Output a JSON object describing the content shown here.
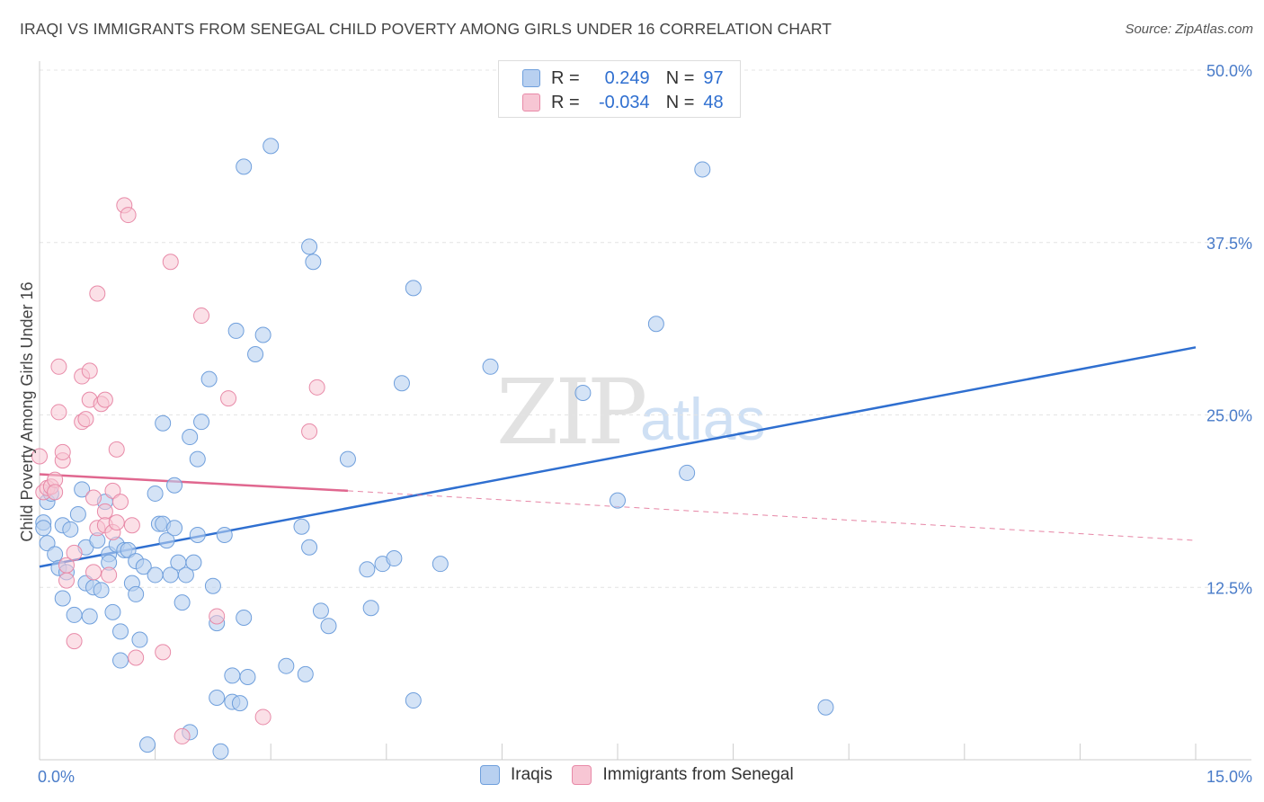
{
  "title": "IRAQI VS IMMIGRANTS FROM SENEGAL CHILD POVERTY AMONG GIRLS UNDER 16 CORRELATION CHART",
  "source": "Source: ZipAtlas.com",
  "watermark": {
    "zip": "ZIP",
    "atlas": "atlas"
  },
  "legend": {
    "r_label": "R =",
    "n_label": "N =",
    "rows": [
      {
        "r": "0.249",
        "n": "97"
      },
      {
        "r": "-0.034",
        "n": "48"
      }
    ]
  },
  "colors": {
    "iraqis_fill": "#b8d0f0",
    "iraqis_stroke": "#6f9fdc",
    "iraqis_line": "#2f6fd0",
    "senegal_fill": "#f7c6d4",
    "senegal_stroke": "#e88aa8",
    "senegal_line": "#e0678f"
  },
  "chart_data": {
    "type": "scatter",
    "xlabel": "",
    "ylabel": "Child Poverty Among Girls Under 16",
    "xlim": [
      0,
      15
    ],
    "ylim": [
      0,
      50
    ],
    "x_ticks": [
      {
        "value": 0,
        "label": "0.0%"
      },
      {
        "value": 15,
        "label": "15.0%"
      }
    ],
    "y_ticks": [
      {
        "value": 12.5,
        "label": "12.5%"
      },
      {
        "value": 25,
        "label": "25.0%"
      },
      {
        "value": 37.5,
        "label": "37.5%"
      },
      {
        "value": 50,
        "label": "50.0%"
      }
    ],
    "grid": true,
    "legend_position": "top-center",
    "series": [
      {
        "name": "Iraqis",
        "points": [
          [
            0.05,
            17.2
          ],
          [
            0.05,
            16.8
          ],
          [
            0.1,
            15.7
          ],
          [
            0.1,
            18.7
          ],
          [
            0.15,
            19.3
          ],
          [
            0.2,
            14.9
          ],
          [
            0.25,
            13.9
          ],
          [
            0.3,
            11.7
          ],
          [
            0.3,
            17.0
          ],
          [
            0.35,
            13.6
          ],
          [
            0.4,
            16.7
          ],
          [
            0.45,
            10.5
          ],
          [
            0.5,
            17.8
          ],
          [
            0.55,
            19.6
          ],
          [
            0.6,
            12.8
          ],
          [
            0.6,
            15.4
          ],
          [
            0.65,
            10.4
          ],
          [
            0.7,
            12.5
          ],
          [
            0.75,
            15.9
          ],
          [
            0.8,
            12.3
          ],
          [
            0.85,
            18.7
          ],
          [
            0.9,
            14.9
          ],
          [
            0.9,
            14.3
          ],
          [
            0.95,
            10.7
          ],
          [
            1.0,
            15.6
          ],
          [
            1.05,
            7.2
          ],
          [
            1.05,
            9.3
          ],
          [
            1.1,
            15.2
          ],
          [
            1.15,
            15.2
          ],
          [
            1.2,
            12.8
          ],
          [
            1.25,
            12.0
          ],
          [
            1.25,
            14.4
          ],
          [
            1.3,
            8.7
          ],
          [
            1.35,
            14.0
          ],
          [
            1.4,
            1.1
          ],
          [
            1.5,
            13.4
          ],
          [
            1.5,
            19.3
          ],
          [
            1.55,
            17.1
          ],
          [
            1.6,
            17.1
          ],
          [
            1.6,
            24.4
          ],
          [
            1.65,
            15.9
          ],
          [
            1.7,
            13.4
          ],
          [
            1.75,
            19.9
          ],
          [
            1.75,
            16.8
          ],
          [
            1.8,
            14.3
          ],
          [
            1.85,
            11.4
          ],
          [
            1.9,
            13.4
          ],
          [
            1.95,
            2.0
          ],
          [
            1.95,
            23.4
          ],
          [
            2.0,
            14.3
          ],
          [
            2.05,
            16.3
          ],
          [
            2.05,
            21.8
          ],
          [
            2.1,
            24.5
          ],
          [
            2.2,
            27.6
          ],
          [
            2.25,
            12.6
          ],
          [
            2.3,
            4.5
          ],
          [
            2.3,
            9.9
          ],
          [
            2.35,
            0.6
          ],
          [
            2.4,
            16.3
          ],
          [
            2.5,
            6.1
          ],
          [
            2.5,
            4.2
          ],
          [
            2.55,
            31.1
          ],
          [
            2.6,
            4.1
          ],
          [
            2.65,
            43.0
          ],
          [
            2.65,
            10.3
          ],
          [
            2.7,
            6.0
          ],
          [
            2.8,
            29.4
          ],
          [
            2.9,
            30.8
          ],
          [
            3.0,
            44.5
          ],
          [
            3.2,
            6.8
          ],
          [
            3.4,
            16.9
          ],
          [
            3.45,
            6.2
          ],
          [
            3.5,
            15.4
          ],
          [
            3.5,
            37.2
          ],
          [
            3.55,
            36.1
          ],
          [
            3.65,
            10.8
          ],
          [
            3.75,
            9.7
          ],
          [
            4.0,
            21.8
          ],
          [
            4.25,
            13.8
          ],
          [
            4.3,
            11.0
          ],
          [
            4.45,
            14.2
          ],
          [
            4.6,
            14.6
          ],
          [
            4.7,
            27.3
          ],
          [
            4.85,
            4.3
          ],
          [
            4.85,
            34.2
          ],
          [
            5.2,
            14.2
          ],
          [
            5.85,
            28.5
          ],
          [
            7.05,
            26.6
          ],
          [
            7.5,
            18.8
          ],
          [
            8.0,
            31.6
          ],
          [
            8.4,
            20.8
          ],
          [
            8.6,
            42.8
          ],
          [
            10.2,
            3.8
          ]
        ],
        "trend": {
          "x": [
            0,
            15
          ],
          "y": [
            14.0,
            29.9
          ]
        }
      },
      {
        "name": "Immigrants from Senegal",
        "points": [
          [
            0.0,
            22.0
          ],
          [
            0.05,
            19.4
          ],
          [
            0.1,
            19.7
          ],
          [
            0.15,
            19.8
          ],
          [
            0.2,
            20.3
          ],
          [
            0.2,
            19.4
          ],
          [
            0.25,
            25.2
          ],
          [
            0.25,
            28.5
          ],
          [
            0.3,
            21.7
          ],
          [
            0.3,
            22.3
          ],
          [
            0.35,
            14.1
          ],
          [
            0.35,
            13.0
          ],
          [
            0.45,
            15.0
          ],
          [
            0.45,
            8.6
          ],
          [
            0.55,
            24.5
          ],
          [
            0.55,
            27.8
          ],
          [
            0.6,
            24.7
          ],
          [
            0.65,
            26.1
          ],
          [
            0.65,
            28.2
          ],
          [
            0.7,
            19.0
          ],
          [
            0.7,
            13.6
          ],
          [
            0.75,
            33.8
          ],
          [
            0.75,
            16.8
          ],
          [
            0.8,
            25.8
          ],
          [
            0.85,
            18.0
          ],
          [
            0.85,
            17.0
          ],
          [
            0.85,
            26.1
          ],
          [
            0.9,
            13.4
          ],
          [
            0.95,
            19.5
          ],
          [
            0.95,
            16.5
          ],
          [
            1.0,
            17.2
          ],
          [
            1.0,
            22.5
          ],
          [
            1.05,
            18.7
          ],
          [
            1.1,
            40.2
          ],
          [
            1.15,
            39.5
          ],
          [
            1.2,
            17.0
          ],
          [
            1.25,
            7.4
          ],
          [
            1.6,
            7.8
          ],
          [
            1.7,
            36.1
          ],
          [
            1.85,
            1.7
          ],
          [
            2.1,
            32.2
          ],
          [
            2.3,
            10.4
          ],
          [
            2.45,
            26.2
          ],
          [
            2.9,
            3.1
          ],
          [
            3.5,
            23.8
          ],
          [
            3.6,
            27.0
          ]
        ],
        "trend_solid": {
          "x": [
            0,
            4.0
          ],
          "y": [
            20.7,
            19.5
          ]
        },
        "trend_dashed": {
          "x": [
            4.0,
            15
          ],
          "y": [
            19.5,
            15.9
          ]
        }
      }
    ]
  },
  "bottom_legend": {
    "iraqis": "Iraqis",
    "senegal": "Immigrants from Senegal"
  }
}
